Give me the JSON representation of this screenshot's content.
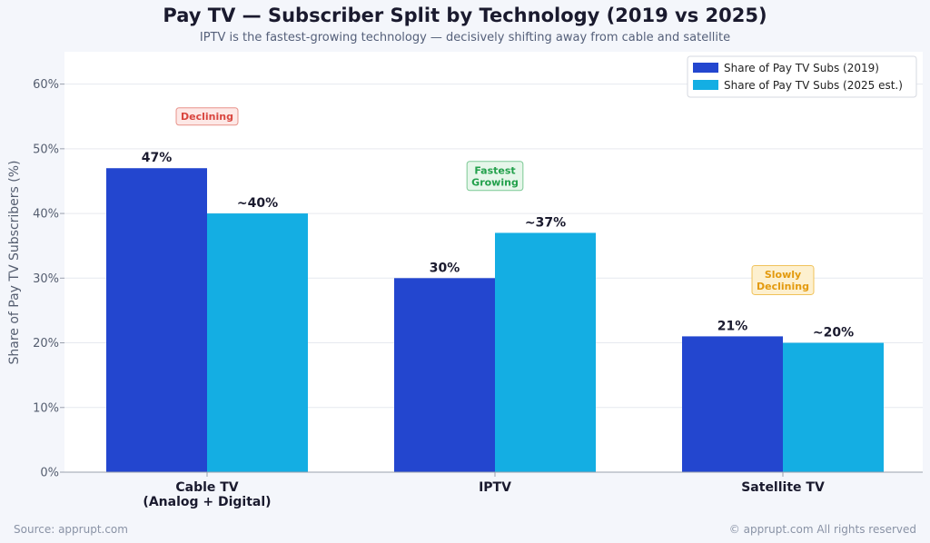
{
  "page": {
    "title": "Pay TV — Subscriber Split by Technology (2019 vs 2025)",
    "subtitle": "IPTV is the fastest-growing technology — decisively shifting away from cable and satellite",
    "source": "Source: apprupt.com",
    "copyright": "© apprupt.com  All rights reserved"
  },
  "chart_data": {
    "type": "bar",
    "title": "Pay TV — Subscriber Split by Technology (2019 vs 2025)",
    "xlabel": "",
    "ylabel": "Share of Pay TV Subscribers (%)",
    "ylim": [
      0,
      65
    ],
    "yticks": [
      0,
      10,
      20,
      30,
      40,
      50,
      60
    ],
    "ytick_labels": [
      "0%",
      "10%",
      "20%",
      "30%",
      "40%",
      "50%",
      "60%"
    ],
    "grid": true,
    "legend_position": "top-right",
    "categories": [
      [
        "Cable TV",
        "(Analog + Digital)"
      ],
      [
        "IPTV"
      ],
      [
        "Satellite TV"
      ]
    ],
    "series": [
      {
        "name": "Share of Pay TV Subs (2019)",
        "color": "#2346cf",
        "values": [
          47,
          30,
          21
        ],
        "labels": [
          "47%",
          "30%",
          "21%"
        ]
      },
      {
        "name": "Share of Pay TV Subs (2025 est.)",
        "color": "#14aee3",
        "values": [
          40,
          37,
          20
        ],
        "labels": [
          "~40%",
          "~37%",
          "~20%"
        ]
      }
    ],
    "annotations": [
      {
        "lines": [
          "Declining"
        ],
        "category": 0,
        "y": 55,
        "text_color": "#d9463f",
        "fill": "#fde8e6",
        "stroke": "#e8928a"
      },
      {
        "lines": [
          "Fastest",
          "Growing"
        ],
        "category": 1,
        "y": 45.8,
        "text_color": "#22a04b",
        "fill": "#e6f6ea",
        "stroke": "#7cc995"
      },
      {
        "lines": [
          "Slowly",
          "Declining"
        ],
        "category": 2,
        "y": 29.7,
        "text_color": "#e39a0e",
        "fill": "#fdf0cf",
        "stroke": "#f0c25a"
      }
    ]
  }
}
